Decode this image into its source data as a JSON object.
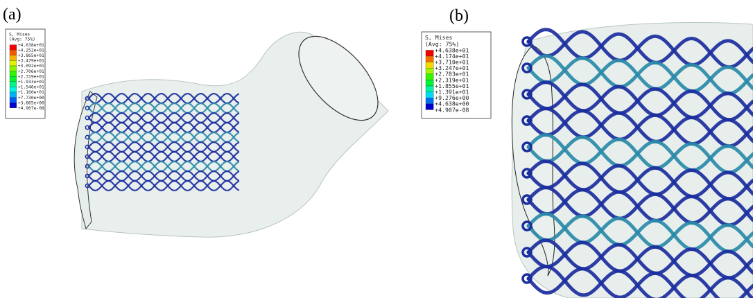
{
  "panels": [
    {
      "label": "(a)",
      "legend": {
        "title": "S, Mises",
        "subtitle": "(Avg: 75%)",
        "labels": [
          "+4.638e+01",
          "+4.252e+01",
          "+3.865e+01",
          "+3.479e+01",
          "+3.092e+01",
          "+2.706e+01",
          "+2.319e+01",
          "+1.933e+01",
          "+1.546e+01",
          "+1.160e+01",
          "+7.730e+00",
          "+3.865e+00",
          "+4.907e-08"
        ]
      }
    },
    {
      "label": "(b)",
      "legend": {
        "title": "S, Mises",
        "subtitle": "(Avg: 75%)",
        "labels": [
          "+4.638e+01",
          "+4.174e+01",
          "+3.710e+01",
          "+3.247e+01",
          "+2.783e+01",
          "+2.319e+01",
          "+1.855e+01",
          "+1.391e+01",
          "+9.276e+00",
          "+4.638e+00",
          "+4.907e-08"
        ]
      }
    }
  ]
}
